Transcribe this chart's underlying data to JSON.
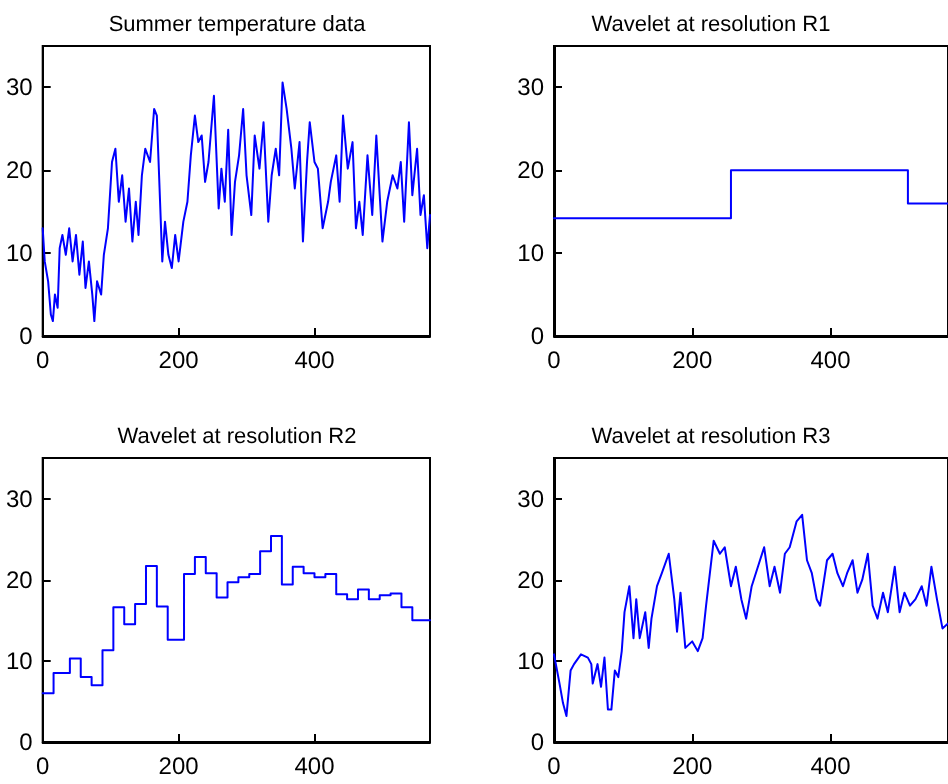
{
  "chart_data": [
    {
      "type": "line",
      "title": "Summer temperature data",
      "color": "#0000ff",
      "line_style": "solid",
      "marker": "none",
      "grid": false,
      "xlim": [
        0,
        570
      ],
      "xticks": [
        0,
        200,
        400
      ],
      "ylim": [
        0,
        35
      ],
      "yticks": [
        0,
        10,
        20,
        30
      ],
      "x": [
        0,
        3,
        8,
        12,
        15,
        18,
        22,
        25,
        29,
        34,
        39,
        44,
        49,
        54,
        59,
        63,
        68,
        73,
        76,
        80,
        86,
        90,
        96,
        102,
        107,
        112,
        117,
        122,
        127,
        132,
        137,
        141,
        146,
        151,
        158,
        164,
        168,
        172,
        176,
        180,
        185,
        190,
        195,
        200,
        207,
        213,
        218,
        224,
        229,
        234,
        239,
        244,
        252,
        259,
        263,
        268,
        273,
        278,
        283,
        289,
        295,
        300,
        307,
        312,
        319,
        325,
        332,
        337,
        343,
        348,
        353,
        359,
        366,
        371,
        378,
        383,
        389,
        393,
        400,
        405,
        412,
        420,
        424,
        432,
        437,
        442,
        449,
        456,
        461,
        466,
        471,
        478,
        485,
        491,
        496,
        500,
        507,
        515,
        522,
        527,
        532,
        539,
        544,
        551,
        556,
        561,
        566,
        570
      ],
      "values": [
        13,
        9,
        6.6,
        2.6,
        1.8,
        5,
        3.4,
        10.6,
        12.2,
        9.8,
        13,
        9,
        12.2,
        7.4,
        11.4,
        5.8,
        9,
        5,
        1.8,
        6.6,
        5,
        9.8,
        13,
        21,
        22.6,
        16.2,
        19.4,
        13.8,
        17.8,
        11.4,
        16.2,
        12.2,
        19.4,
        22.6,
        21,
        27.4,
        26.6,
        17.8,
        9,
        13.8,
        9.8,
        8.2,
        12.2,
        9,
        13.8,
        16.2,
        21.8,
        26.6,
        23.4,
        24.2,
        18.6,
        21,
        29,
        15.4,
        20.2,
        16.2,
        24.9,
        12.2,
        18.6,
        21.8,
        27.4,
        19.4,
        14.6,
        24.2,
        20.2,
        25.8,
        13.8,
        19.4,
        22.6,
        19.4,
        30.6,
        27.4,
        22.6,
        17.8,
        23.4,
        11.4,
        21,
        25.8,
        21,
        20.2,
        13,
        16.2,
        18.6,
        21.8,
        16.2,
        26.6,
        20.2,
        23.4,
        13,
        16.2,
        12.2,
        21.8,
        14.6,
        24.2,
        17,
        11.4,
        16.2,
        19.4,
        17.8,
        21,
        13.8,
        25.8,
        17,
        22.6,
        14.6,
        17,
        10.6,
        14.6
      ]
    },
    {
      "type": "step",
      "title": "Wavelet at resolution R1",
      "color": "#0000ff",
      "line_style": "solid",
      "marker": "none",
      "grid": false,
      "xlim": [
        0,
        570
      ],
      "xticks": [
        0,
        200,
        400
      ],
      "ylim": [
        0,
        35
      ],
      "yticks": [
        0,
        10,
        20,
        30
      ],
      "x": [
        0,
        256,
        512,
        570
      ],
      "values": [
        14.2,
        20,
        16,
        16
      ]
    },
    {
      "type": "step",
      "title": "Wavelet at resolution R2",
      "color": "#0000ff",
      "line_style": "solid",
      "marker": "none",
      "grid": false,
      "xlim": [
        0,
        570
      ],
      "xticks": [
        0,
        200,
        400
      ],
      "ylim": [
        0,
        35
      ],
      "yticks": [
        0,
        10,
        20,
        30
      ],
      "x": [
        0,
        16,
        40,
        56,
        72,
        88,
        104,
        120,
        136,
        152,
        168,
        184,
        208,
        224,
        240,
        256,
        272,
        288,
        304,
        320,
        336,
        352,
        368,
        384,
        400,
        416,
        432,
        448,
        464,
        480,
        496,
        512,
        528,
        544,
        570
      ],
      "values": [
        6,
        8.5,
        10.3,
        8,
        7,
        11.3,
        16.6,
        14.5,
        17,
        21.7,
        16.7,
        12.6,
        20.7,
        22.8,
        20.8,
        17.8,
        19.7,
        20.3,
        20.7,
        23.5,
        25.4,
        19.4,
        21.6,
        20.8,
        20.3,
        20.7,
        18.2,
        17.6,
        18.8,
        17.6,
        18.1,
        18.3,
        16.6,
        15,
        15
      ]
    },
    {
      "type": "line",
      "title": "Wavelet at resolution R3",
      "color": "#0000ff",
      "line_style": "solid",
      "marker": "none",
      "grid": false,
      "xlim": [
        0,
        570
      ],
      "xticks": [
        0,
        200,
        400
      ],
      "ylim": [
        0,
        35
      ],
      "yticks": [
        0,
        10,
        20,
        30
      ],
      "x": [
        0,
        8,
        13,
        18,
        24,
        29,
        39,
        49,
        54,
        56,
        63,
        68,
        73,
        78,
        83,
        88,
        93,
        98,
        102,
        109,
        115,
        119,
        124,
        132,
        137,
        141,
        149,
        156,
        166,
        174,
        178,
        183,
        190,
        200,
        208,
        215,
        220,
        231,
        240,
        247,
        256,
        263,
        271,
        278,
        286,
        298,
        304,
        312,
        319,
        327,
        334,
        341,
        351,
        359,
        366,
        373,
        380,
        385,
        395,
        403,
        410,
        418,
        424,
        432,
        439,
        446,
        454,
        461,
        468,
        476,
        483,
        493,
        500,
        507,
        515,
        523,
        532,
        539,
        546,
        554,
        562,
        570
      ],
      "values": [
        10.8,
        7.2,
        4.8,
        3.2,
        8.8,
        9.6,
        10.8,
        10.4,
        9.6,
        7.2,
        9.6,
        6.8,
        10.4,
        4,
        4,
        8.8,
        8,
        11.2,
        16,
        19.2,
        12.8,
        17.6,
        12.8,
        16,
        11.6,
        15.2,
        19.2,
        20.8,
        23.2,
        17.6,
        13.6,
        18.4,
        11.6,
        12.4,
        11.2,
        12.8,
        16.8,
        24.8,
        23.2,
        24,
        19.2,
        21.6,
        17.6,
        15.2,
        19.2,
        22.4,
        24,
        19.2,
        21.6,
        18.4,
        23.2,
        24,
        27.2,
        28,
        22.4,
        20.8,
        17.6,
        16.8,
        22.4,
        23.2,
        20.8,
        19.2,
        20.8,
        22.4,
        18.4,
        20,
        23.2,
        16.8,
        15.2,
        18.4,
        16,
        21.6,
        16,
        18.4,
        16.8,
        17.6,
        19.2,
        16.8,
        21.6,
        17.6,
        14,
        14.6
      ]
    }
  ]
}
